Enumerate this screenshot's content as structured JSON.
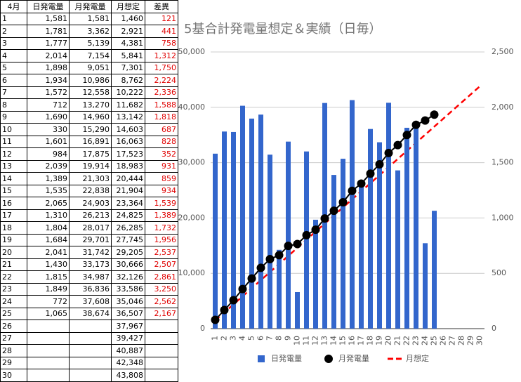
{
  "table": {
    "header": [
      "4月",
      "日発電量",
      "月発電量",
      "月想定",
      "差異"
    ],
    "rows": [
      [
        "1",
        "1,581",
        "1,581",
        "1,460",
        "121"
      ],
      [
        "2",
        "1,781",
        "3,362",
        "2,921",
        "441"
      ],
      [
        "3",
        "1,777",
        "5,139",
        "4,381",
        "758"
      ],
      [
        "4",
        "2,014",
        "7,154",
        "5,841",
        "1,312"
      ],
      [
        "5",
        "1,898",
        "9,051",
        "7,301",
        "1,750"
      ],
      [
        "6",
        "1,934",
        "10,986",
        "8,762",
        "2,224"
      ],
      [
        "7",
        "1,572",
        "12,558",
        "10,222",
        "2,336"
      ],
      [
        "8",
        "712",
        "13,270",
        "11,682",
        "1,588"
      ],
      [
        "9",
        "1,690",
        "14,960",
        "13,142",
        "1,818"
      ],
      [
        "10",
        "330",
        "15,290",
        "14,603",
        "687"
      ],
      [
        "11",
        "1,601",
        "16,891",
        "16,063",
        "828"
      ],
      [
        "12",
        "984",
        "17,875",
        "17,523",
        "352"
      ],
      [
        "13",
        "2,039",
        "19,914",
        "18,983",
        "931"
      ],
      [
        "14",
        "1,389",
        "21,303",
        "20,444",
        "859"
      ],
      [
        "15",
        "1,535",
        "22,838",
        "21,904",
        "934"
      ],
      [
        "16",
        "2,065",
        "24,903",
        "23,364",
        "1,539"
      ],
      [
        "17",
        "1,310",
        "26,213",
        "24,825",
        "1,389"
      ],
      [
        "18",
        "1,804",
        "28,017",
        "26,285",
        "1,732"
      ],
      [
        "19",
        "1,684",
        "29,701",
        "27,745",
        "1,956"
      ],
      [
        "20",
        "2,041",
        "31,742",
        "29,205",
        "2,537"
      ],
      [
        "21",
        "1,430",
        "33,173",
        "30,666",
        "2,507"
      ],
      [
        "22",
        "1,815",
        "34,987",
        "32,126",
        "2,861"
      ],
      [
        "23",
        "1,849",
        "36,836",
        "33,586",
        "3,250"
      ],
      [
        "24",
        "772",
        "37,608",
        "35,046",
        "2,562"
      ],
      [
        "25",
        "1,065",
        "38,674",
        "36,507",
        "2,167"
      ],
      [
        "26",
        null,
        null,
        "37,967",
        null
      ],
      [
        "27",
        null,
        null,
        "39,427",
        null
      ],
      [
        "28",
        null,
        null,
        "40,887",
        null
      ],
      [
        "29",
        null,
        null,
        "42,348",
        null
      ],
      [
        "30",
        null,
        null,
        "43,808",
        null
      ]
    ]
  },
  "chart_data": {
    "type": "bar",
    "title": "5基合計発電量想定＆実績（日毎）",
    "categories": [
      "1",
      "2",
      "3",
      "4",
      "5",
      "6",
      "7",
      "8",
      "9",
      "10",
      "11",
      "12",
      "13",
      "14",
      "15",
      "16",
      "17",
      "18",
      "19",
      "20",
      "21",
      "22",
      "23",
      "24",
      "25",
      "26",
      "27",
      "28",
      "29",
      "30"
    ],
    "series": [
      {
        "name": "日発電量",
        "color": "#3366cc",
        "type": "bar",
        "axis": "y2",
        "values": [
          1581,
          1781,
          1777,
          2014,
          1898,
          1934,
          1572,
          712,
          1690,
          330,
          1601,
          984,
          2039,
          1389,
          1535,
          2065,
          1310,
          1804,
          1684,
          2041,
          1430,
          1815,
          1849,
          772,
          1065,
          null,
          null,
          null,
          null,
          null
        ]
      },
      {
        "name": "月発電量",
        "color": "#000000",
        "type": "line-dot",
        "values": [
          1581,
          3362,
          5139,
          7154,
          9051,
          10986,
          12558,
          13270,
          14960,
          15290,
          16891,
          17875,
          19914,
          21303,
          22838,
          24903,
          26213,
          28017,
          29701,
          31742,
          33173,
          34987,
          36836,
          37608,
          38674,
          null,
          null,
          null,
          null,
          null
        ]
      },
      {
        "name": "月想定",
        "color": "#ff0000",
        "type": "dashed-line",
        "values": [
          1460,
          2921,
          4381,
          5841,
          7301,
          8762,
          10222,
          11682,
          13142,
          14603,
          16063,
          17523,
          18983,
          20444,
          21904,
          23364,
          24825,
          26285,
          27745,
          29205,
          30666,
          32126,
          33586,
          35046,
          36507,
          37967,
          39427,
          40887,
          42348,
          43808
        ]
      }
    ],
    "ylim": [
      0,
      50000
    ],
    "yticks": [
      0,
      {
        "value": 10000,
        "label": "10,000"
      },
      {
        "value": 20000,
        "label": "20,000"
      },
      {
        "value": 30000,
        "label": "30,000"
      },
      {
        "value": 40000,
        "label": "40,000"
      },
      {
        "value": 50000,
        "label": "50,000"
      }
    ],
    "y2lim": [
      0,
      2500
    ],
    "y2ticks": [
      0,
      500,
      {
        "value": 1000,
        "label": "1,000"
      },
      {
        "value": 1500,
        "label": "1,500"
      },
      {
        "value": 2000,
        "label": "2,000"
      },
      {
        "value": 2500,
        "label": "2,500"
      }
    ],
    "grid": true,
    "legend": "bottom"
  }
}
